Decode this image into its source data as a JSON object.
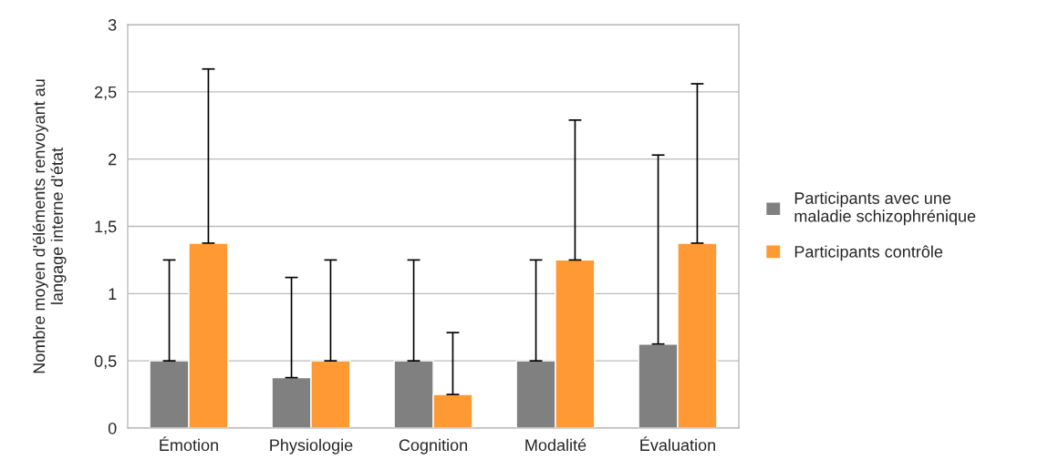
{
  "chart_data": {
    "type": "bar",
    "ylabel": "Nombre moyen d'éléments renvoyant au\nlangage interne d'état",
    "categories": [
      "Émotion",
      "Physiologie",
      "Cognition",
      "Modalité",
      "Évaluation"
    ],
    "series": [
      {
        "name": "Participants avec une\nmaladie schizophrénique",
        "color": "#808080",
        "values": [
          0.5,
          0.375,
          0.5,
          0.5,
          0.625
        ],
        "errors": [
          [
            0.5,
            1.25
          ],
          [
            0.375,
            1.12
          ],
          [
            0.5,
            1.25
          ],
          [
            0.5,
            1.25
          ],
          [
            0.625,
            2.03
          ]
        ]
      },
      {
        "name": "Participants contrôle",
        "color": "#ff9933",
        "values": [
          1.375,
          0.5,
          0.25,
          1.25,
          1.375
        ],
        "errors": [
          [
            1.375,
            2.67
          ],
          [
            0.5,
            1.25
          ],
          [
            0.25,
            0.71
          ],
          [
            1.25,
            2.29
          ],
          [
            1.375,
            2.56
          ]
        ]
      }
    ],
    "ylim": [
      0,
      3
    ],
    "yticks": [
      0,
      {
        "value": 0.5,
        "label": "0,5"
      },
      1,
      {
        "value": 1.5,
        "label": "1,5"
      },
      2,
      {
        "value": 2.5,
        "label": "2,5"
      },
      3
    ],
    "grid": "y",
    "legend": "right"
  }
}
